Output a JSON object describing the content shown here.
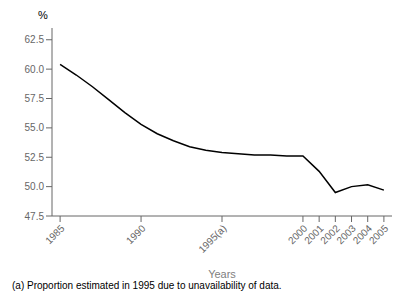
{
  "chart_data": {
    "type": "line",
    "x": [
      1985,
      1986,
      1987,
      1988,
      1989,
      1990,
      1991,
      1992,
      1993,
      1994,
      1995,
      1996,
      1997,
      1998,
      1999,
      2000,
      2001,
      2002,
      2003,
      2004,
      2005
    ],
    "values": [
      60.4,
      59.5,
      58.5,
      57.4,
      56.3,
      55.3,
      54.5,
      53.9,
      53.4,
      53.1,
      52.9,
      52.8,
      52.7,
      52.7,
      52.6,
      52.6,
      51.3,
      49.5,
      50.0,
      50.15,
      49.7
    ],
    "color": "#000000",
    "xlim": [
      1984.5,
      2005.5
    ],
    "xticks": [
      1985,
      1990,
      {
        "value": 1995,
        "label": "1995(a)"
      },
      2000,
      2001,
      2002,
      2003,
      2004,
      2005
    ],
    "ylim": [
      47.5,
      63.5
    ],
    "yticks": [
      47.5,
      {
        "value": 50.0,
        "label": "50.0"
      },
      52.5,
      {
        "value": 55.0,
        "label": "55.0"
      },
      57.5,
      {
        "value": 60.0,
        "label": "60.0"
      },
      62.5
    ],
    "xlabel": "Years",
    "ylabel": "%",
    "footnote": "(a) Proportion estimated in 1995 due to unavailability of data.",
    "grid": false
  }
}
